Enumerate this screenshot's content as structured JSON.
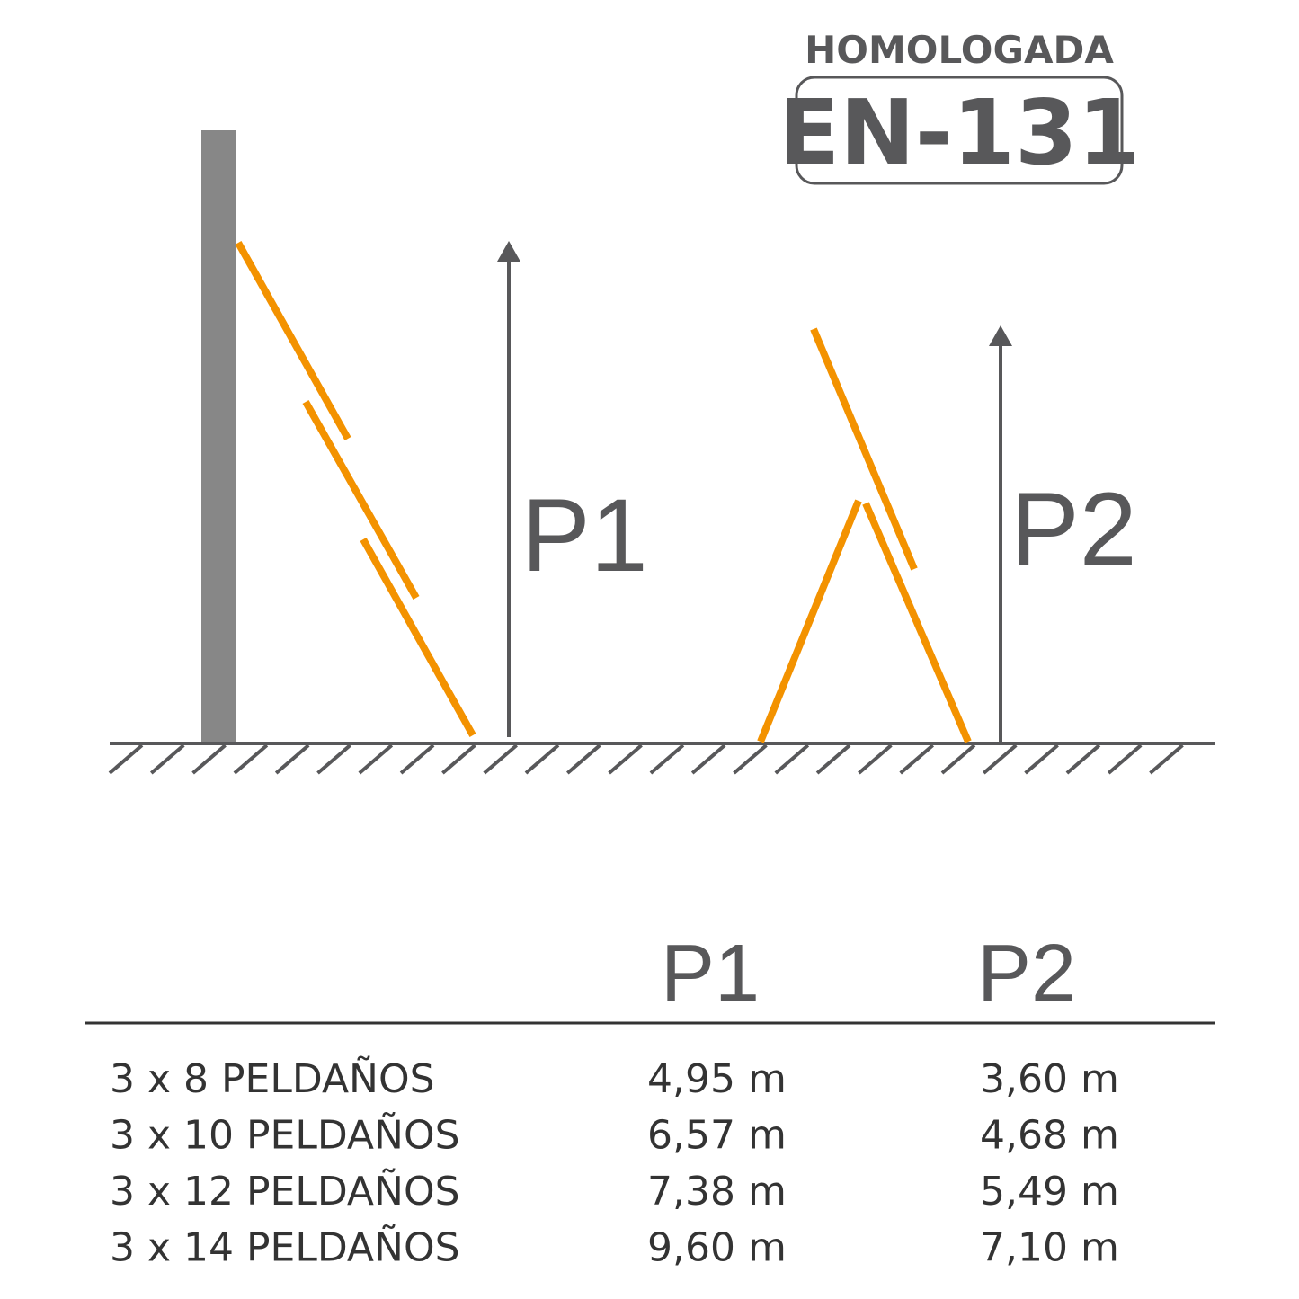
{
  "header": {
    "certification": "HOMOLOGADA",
    "standard": "EN-131"
  },
  "diagram": {
    "labels": [
      "P1",
      "P2"
    ]
  },
  "table": {
    "columns": [
      "P1",
      "P2"
    ],
    "rows": [
      [
        "3 x 8 PELDAÑOS",
        "4,95 m",
        "3,60 m"
      ],
      [
        "3 x 10 PELDAÑOS",
        "6,57 m",
        "4,68 m"
      ],
      [
        "3 x 12 PELDAÑOS",
        "7,38 m",
        "5,49 m"
      ],
      [
        "3 x 14 PELDAÑOS",
        "9,60 m",
        "7,10 m"
      ]
    ]
  }
}
